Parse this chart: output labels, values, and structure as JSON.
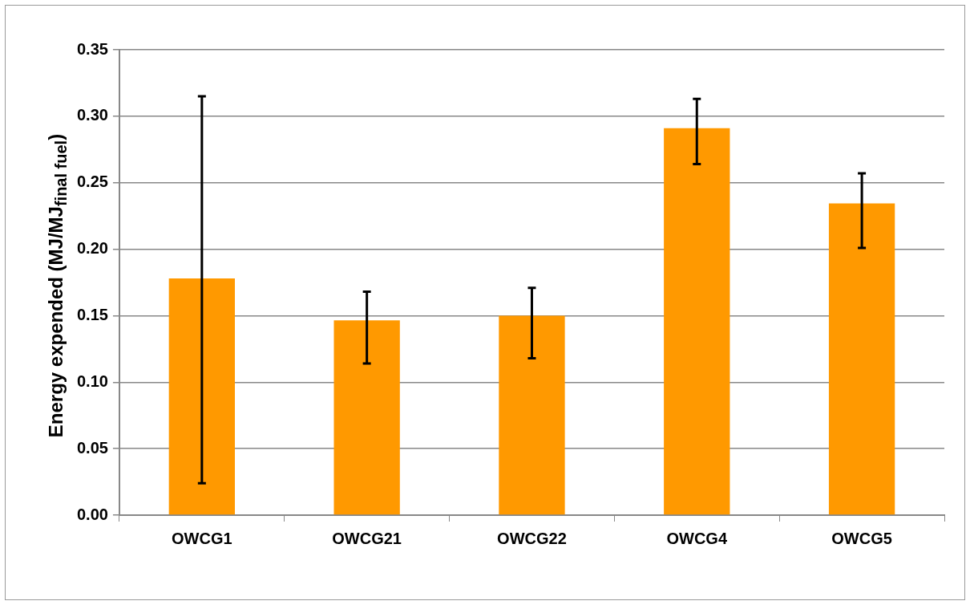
{
  "chart_data": {
    "type": "bar",
    "ylabel": "Energy expended (MJ/MJ$_{final fuel}$)",
    "categories": [
      "OWCG1",
      "OWCG21",
      "OWCG22",
      "OWCG4",
      "OWCG5"
    ],
    "values": [
      0.178,
      0.1465,
      0.15,
      0.291,
      0.2345
    ],
    "errors": [
      [
        0.024,
        0.315
      ],
      [
        0.114,
        0.168
      ],
      [
        0.118,
        0.171
      ],
      [
        0.264,
        0.313
      ],
      [
        0.201,
        0.257
      ]
    ],
    "color": "#ff9900",
    "ylim": [
      0,
      0.35
    ],
    "yticks": [
      {
        "value": 0,
        "label": "0.00"
      },
      {
        "value": 0.05,
        "label": "0.05"
      },
      {
        "value": 0.1,
        "label": "0.10"
      },
      {
        "value": 0.15,
        "label": "0.15"
      },
      {
        "value": 0.2,
        "label": "0.20"
      },
      {
        "value": 0.25,
        "label": "0.25"
      },
      {
        "value": 0.3,
        "label": "0.30"
      },
      {
        "value": 0.35,
        "label": "0.35"
      }
    ],
    "grid": "y",
    "legend": false
  }
}
